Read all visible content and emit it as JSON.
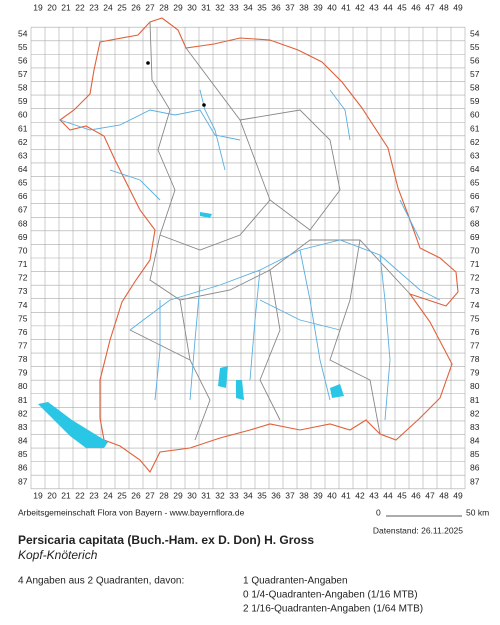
{
  "map": {
    "x_labels": [
      19,
      20,
      21,
      22,
      23,
      24,
      25,
      26,
      27,
      28,
      29,
      30,
      31,
      32,
      33,
      34,
      35,
      36,
      37,
      38,
      39,
      40,
      41,
      42,
      43,
      44,
      45,
      46,
      47,
      48,
      49
    ],
    "y_labels": [
      54,
      55,
      56,
      57,
      58,
      59,
      60,
      61,
      62,
      63,
      64,
      65,
      66,
      67,
      68,
      69,
      70,
      71,
      72,
      73,
      74,
      75,
      76,
      77,
      78,
      79,
      80,
      81,
      82,
      83,
      84,
      85,
      86,
      87
    ],
    "credit": "Arbeitsgemeinschaft Flora von Bayern - www.bayernflora.de",
    "scale_start": "0",
    "scale_end": "50 km",
    "date": "Datenstand: 26.11.2025",
    "title": "Persicaria capitata (Buch.-Ham. ex D. Don) H. Gross",
    "subtitle": "Kopf-Knöterich",
    "summary": "4 Angaben aus 2 Quadranten, davon:",
    "counts": [
      "1 Quadranten-Angaben",
      "0 1/4-Quadranten-Angaben (1/16 MTB)",
      "2 1/16-Quadranten-Angaben (1/64 MTB)"
    ]
  }
}
